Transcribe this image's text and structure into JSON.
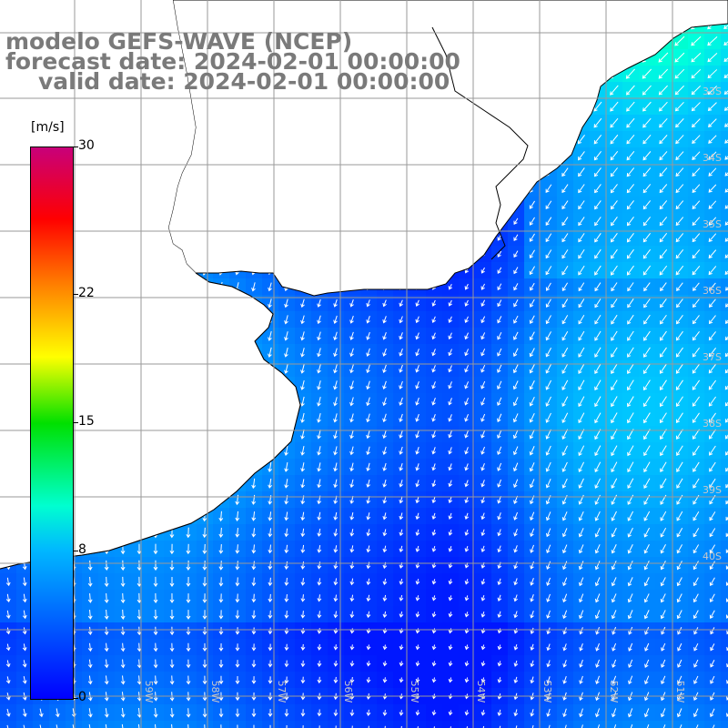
{
  "title": {
    "line1": "modelo GEFS-WAVE (NCEP)",
    "line2": "forecast date: 2024-02-01 00:00:00",
    "line3": "valid date: 2024-02-01 00:00:00"
  },
  "colorbar": {
    "units": "[m/s]",
    "ticks": [
      {
        "label": "30",
        "value": 30
      },
      {
        "label": "22",
        "value": 22
      },
      {
        "label": "15",
        "value": 15
      },
      {
        "label": "8",
        "value": 8
      },
      {
        "label": "0",
        "value": 0
      }
    ],
    "min": 0,
    "max": 30
  },
  "map": {
    "lat_labels": [
      "33S",
      "34S",
      "35S",
      "36S",
      "37S",
      "38S",
      "39S",
      "40S"
    ],
    "lon_labels": [
      "59W",
      "58W",
      "57W",
      "56W",
      "55W",
      "54W",
      "53W",
      "52W",
      "51W"
    ],
    "field": "10 m wind speed and direction",
    "colors": {
      "land": "#ffffff",
      "coast": "#000000",
      "grid": "#9a9a9a",
      "arrow": "#ffffff"
    }
  }
}
